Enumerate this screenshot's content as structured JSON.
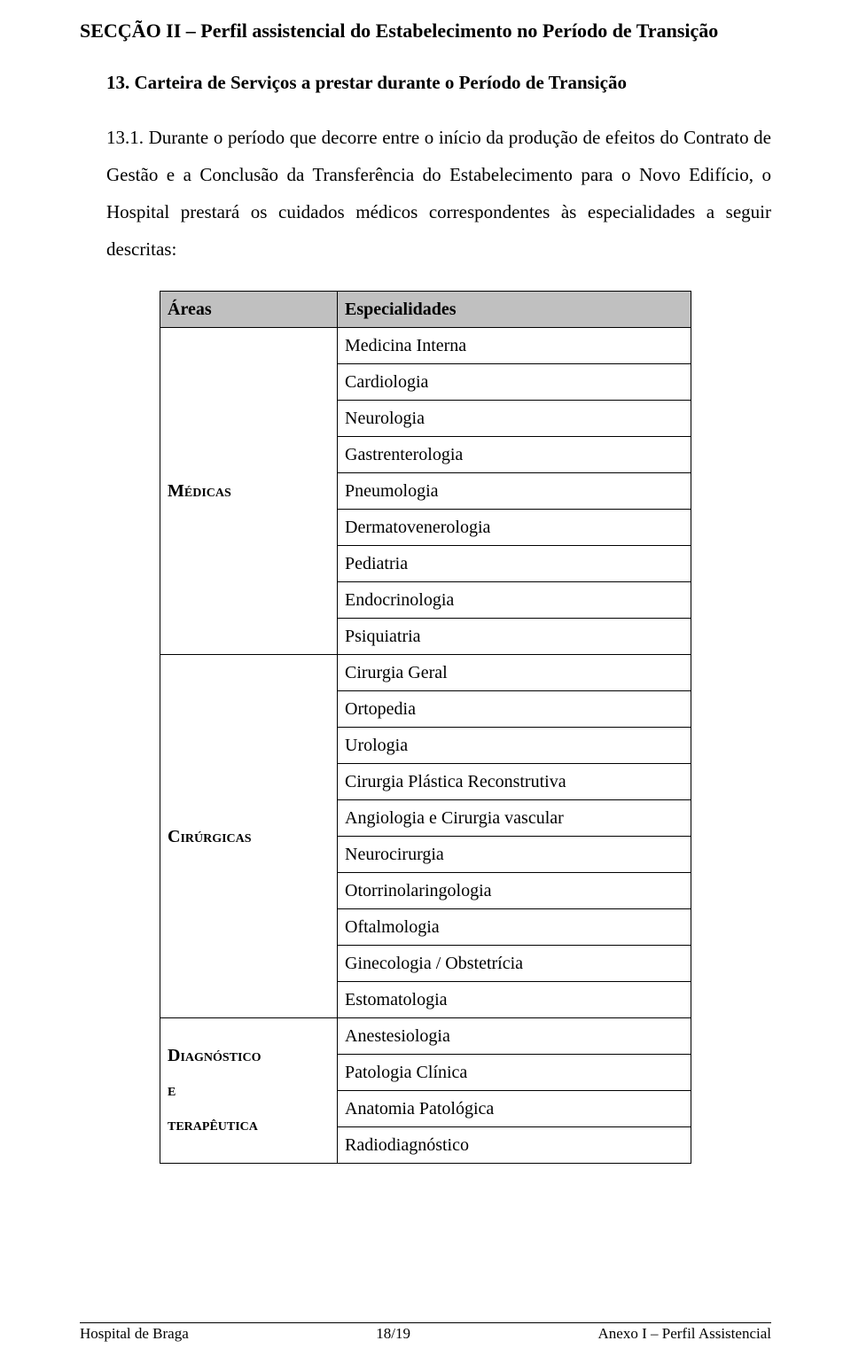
{
  "section": {
    "title": "SECÇÃO II – Perfil assistencial do Estabelecimento no Período de Transição"
  },
  "subsection": {
    "number": "13.",
    "title": "Carteira de Serviços a prestar durante o Período de Transição"
  },
  "paragraph": {
    "number": "13.1.",
    "text": "Durante o período que decorre entre o início da produção de efeitos do Contrato de Gestão e a Conclusão da Transferência do Estabelecimento para o Novo Edifício, o Hospital prestará os cuidados médicos correspondentes às especialidades a seguir descritas:"
  },
  "table": {
    "header": {
      "areas": "Áreas",
      "especialidades": "Especialidades"
    },
    "header_bg": "#c0c0c0",
    "border_color": "#000000",
    "groups": [
      {
        "area": "Médicas",
        "rows": [
          "Medicina Interna",
          "Cardiologia",
          "Neurologia",
          "Gastrenterologia",
          "Pneumologia",
          "Dermatovenerologia",
          "Pediatria",
          "Endocrinologia",
          "Psiquiatria"
        ]
      },
      {
        "area": "Cirúrgicas",
        "rows": [
          "Cirurgia Geral",
          "Ortopedia",
          "Urologia",
          "Cirurgia Plástica Reconstrutiva",
          "Angiologia e Cirurgia vascular",
          "Neurocirurgia",
          "Otorrinolaringologia",
          "Oftalmologia",
          "Ginecologia / Obstetrícia",
          "Estomatologia"
        ]
      },
      {
        "area_lines": [
          "Diagnóstico",
          "e",
          "terapêutica"
        ],
        "rows": [
          "Anestesiologia",
          "Patologia Clínica",
          "Anatomia Patológica",
          "Radiodiagnóstico"
        ]
      }
    ]
  },
  "footer": {
    "left": "Hospital de Braga",
    "center": "18/19",
    "right": "Anexo I – Perfil Assistencial"
  }
}
